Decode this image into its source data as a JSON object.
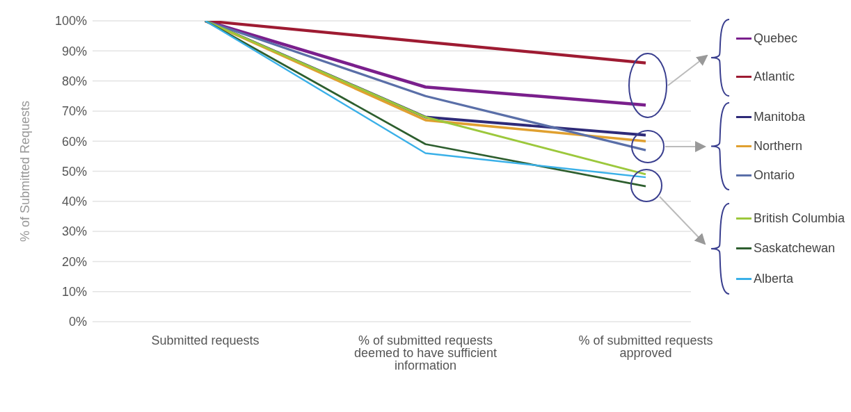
{
  "chart_data": {
    "type": "line",
    "ylabel": "% of Submitted Requests",
    "categories": [
      "Submitted requests",
      "% of submitted requests deemed to have sufficient information",
      "% of submitted requests approved"
    ],
    "series": [
      {
        "name": "Quebec",
        "color": "#7a1f8c",
        "values": [
          100,
          78,
          72
        ]
      },
      {
        "name": "Atlantic",
        "color": "#9e1b32",
        "values": [
          100,
          93,
          86
        ]
      },
      {
        "name": "Manitoba",
        "color": "#2e2a78",
        "values": [
          100,
          68,
          62
        ]
      },
      {
        "name": "Northern",
        "color": "#e0a030",
        "values": [
          100,
          67,
          60
        ]
      },
      {
        "name": "Ontario",
        "color": "#5a6fa8",
        "values": [
          100,
          75,
          57
        ]
      },
      {
        "name": "British Columbia",
        "color": "#9cc83c",
        "values": [
          100,
          68,
          49
        ]
      },
      {
        "name": "Saskatchewan",
        "color": "#2d5e2e",
        "values": [
          100,
          59,
          45
        ]
      },
      {
        "name": "Alberta",
        "color": "#3ab0e8",
        "values": [
          100,
          56,
          48
        ]
      }
    ],
    "ylim": [
      0,
      100
    ],
    "yticks": [
      {
        "value": 0,
        "label": "0%"
      },
      {
        "value": 10,
        "label": "10%"
      },
      {
        "value": 20,
        "label": "20%"
      },
      {
        "value": 30,
        "label": "30%"
      },
      {
        "value": 40,
        "label": "40%"
      },
      {
        "value": 50,
        "label": "50%"
      },
      {
        "value": 60,
        "label": "60%"
      },
      {
        "value": 70,
        "label": "70%"
      },
      {
        "value": 80,
        "label": "80%"
      },
      {
        "value": 90,
        "label": "90%"
      },
      {
        "value": 100,
        "label": "100%"
      }
    ],
    "grid": "y",
    "legend": "right",
    "marker": "none",
    "line_style": "solid"
  }
}
